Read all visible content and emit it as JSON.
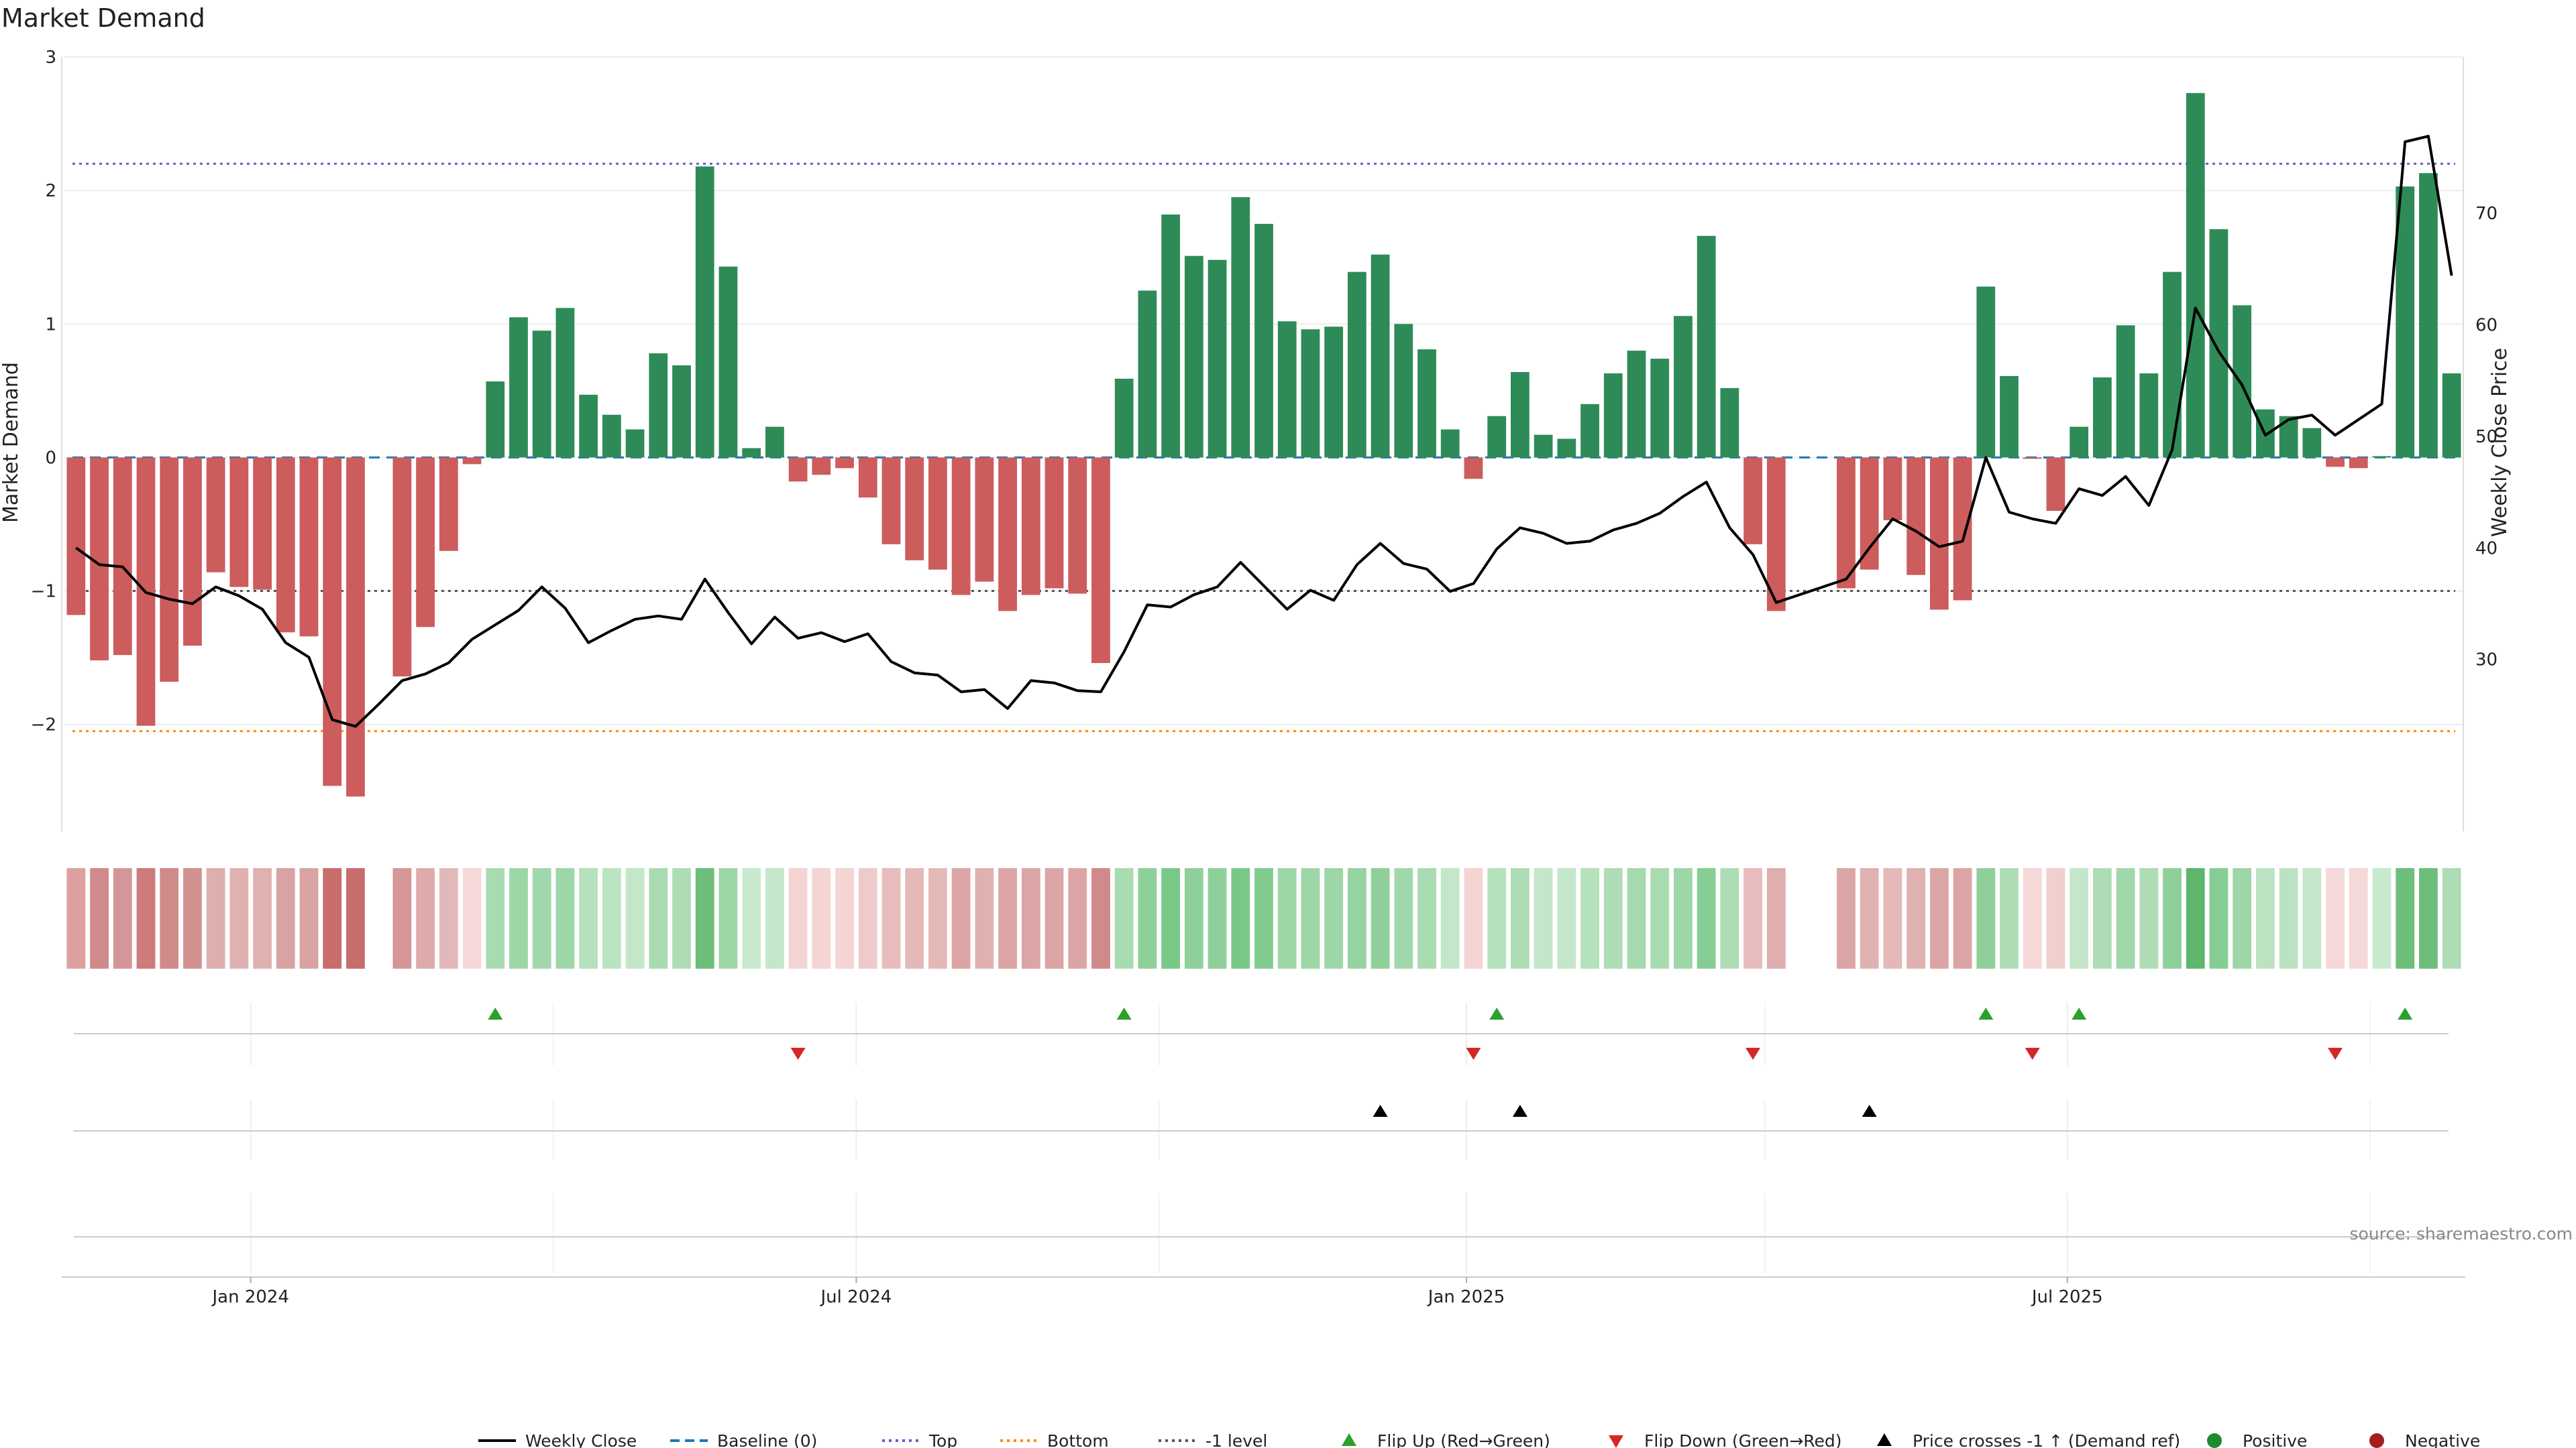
{
  "chart_data": {
    "type": "bar",
    "title": "Market Demand",
    "ylabel": "Market Demand",
    "y2label": "Weekly Close Price",
    "ylim": [
      -2.8,
      3.0
    ],
    "y2lim": [
      14.6,
      84.0
    ],
    "yticks": [
      3,
      2,
      1,
      0,
      -1,
      -2
    ],
    "ytick_labels": [
      "3",
      "2",
      "1",
      "0",
      "−1",
      "−2"
    ],
    "y2ticks": [
      70,
      60,
      50,
      40,
      30
    ],
    "y2tick_labels": [
      "70",
      "60",
      "50",
      "40",
      "30"
    ],
    "xticks": [
      {
        "label": "Jan 2024",
        "week": 7.5
      },
      {
        "label": "Jul 2024",
        "week": 33.5
      },
      {
        "label": "Jan 2025",
        "week": 59.7
      },
      {
        "label": "Jul 2025",
        "week": 85.5
      }
    ],
    "reference_lines": {
      "top": 2.2,
      "bottom": -2.05,
      "minus_one": -1.0,
      "baseline": 0
    },
    "demand": [
      -1.18,
      -1.52,
      -1.48,
      -2.01,
      -1.68,
      -1.41,
      -0.86,
      -0.97,
      -0.99,
      -1.31,
      -1.34,
      -2.46,
      -2.54,
      null,
      -1.64,
      -1.27,
      -0.7,
      -0.05,
      0.57,
      1.05,
      0.95,
      1.12,
      0.47,
      0.32,
      0.21,
      0.78,
      0.69,
      2.18,
      1.43,
      0.07,
      0.23,
      -0.18,
      -0.13,
      -0.08,
      -0.3,
      -0.65,
      -0.77,
      -0.84,
      -1.03,
      -0.93,
      -1.15,
      -1.03,
      -0.98,
      -1.02,
      -1.54,
      0.59,
      1.25,
      1.82,
      1.51,
      1.48,
      1.95,
      1.75,
      1.02,
      0.96,
      0.98,
      1.39,
      1.52,
      1.0,
      0.81,
      0.21,
      -0.16,
      0.31,
      0.64,
      0.17,
      0.14,
      0.4,
      0.63,
      0.8,
      0.74,
      1.06,
      1.66,
      0.52,
      -0.65,
      -1.15,
      null,
      null,
      -0.98,
      -0.84,
      -0.47,
      -0.88,
      -1.14,
      -1.07,
      1.28,
      0.61,
      -0.01,
      -0.4,
      0.23,
      0.6,
      0.99,
      0.63,
      1.39,
      2.73,
      1.71,
      1.14,
      0.36,
      0.31,
      0.22,
      -0.07,
      -0.08,
      0.01,
      2.03,
      2.13,
      0.63
    ],
    "price": [
      40,
      38.5,
      38.3,
      36,
      35.4,
      35,
      36.5,
      35.7,
      34.5,
      31.5,
      30.2,
      24.6,
      24,
      26,
      28.1,
      28.7,
      29.7,
      31.8,
      33.1,
      34.4,
      36.5,
      34.6,
      31.5,
      32.6,
      33.6,
      33.9,
      33.6,
      37.2,
      34.2,
      31.4,
      33.8,
      31.9,
      32.4,
      31.6,
      32.3,
      29.8,
      28.8,
      28.6,
      27.1,
      27.3,
      25.6,
      28.1,
      27.9,
      27.2,
      27.1,
      30.7,
      34.9,
      34.7,
      35.8,
      36.5,
      38.7,
      36.6,
      34.5,
      36.2,
      35.3,
      38.5,
      40.4,
      38.6,
      38.1,
      36.1,
      36.8,
      39.9,
      41.8,
      41.3,
      40.4,
      40.6,
      41.6,
      42.2,
      43.1,
      44.6,
      45.9,
      41.8,
      39.4,
      35.1,
      null,
      null,
      37.2,
      40,
      42.6,
      41.5,
      40.1,
      40.6,
      48.1,
      43.2,
      42.6,
      42.2,
      45.3,
      44.7,
      46.4,
      43.8,
      48.8,
      61.5,
      57.6,
      54.6,
      50.1,
      51.5,
      51.9,
      50.1,
      51.5,
      52.9,
      76.4,
      76.9,
      64.4
    ],
    "strip_colors": [
      "#dca0a0",
      "#d08a8a",
      "#d49696",
      "#cd7b7b",
      "#d08a8a",
      "#d29191",
      "#dfaeae",
      "#e0b1b1",
      "#e0b1b1",
      "#d9a3a3",
      "#d9a3a3",
      "#c86c6c",
      "#c86c6c",
      null,
      "#d49696",
      "#ddabab",
      "#e2b9b9",
      "#f5d9d9",
      "#a9dbb1",
      "#9dd6a7",
      "#a1d8ab",
      "#9dd6a7",
      "#b5e1bd",
      "#bbe3c2",
      "#c3e7c8",
      "#a9dbb1",
      "#addcb5",
      "#6cbe7a",
      "#9dd6a7",
      "#c8e9cd",
      "#c3e7c8",
      "#f5d4d4",
      "#f5d4d4",
      "#f5d4d4",
      "#efcaca",
      "#e8bcbc",
      "#e5b8b8",
      "#e5b8b8",
      "#dca5a5",
      "#e0b1b1",
      "#dca5a5",
      "#dca5a5",
      "#dca5a5",
      "#dca5a5",
      "#d08a8a",
      "#a9dbb1",
      "#8fd09a",
      "#7ac888",
      "#8fd09a",
      "#8fd09a",
      "#7ac888",
      "#82cb8f",
      "#9dd6a7",
      "#9dd6a7",
      "#9dd6a7",
      "#95d3a0",
      "#8fd09a",
      "#a1d8ab",
      "#a9dbb1",
      "#c3e7c8",
      "#f5d4d4",
      "#b5e1bd",
      "#addcb5",
      "#c3e7c8",
      "#c3e7c8",
      "#b5e1bd",
      "#addcb5",
      "#a5d9af",
      "#a9dbb1",
      "#9dd6a7",
      "#86cd93",
      "#addcb5",
      "#e8bcbc",
      "#dfaeae",
      null,
      null,
      "#dca5a5",
      "#e0b1b1",
      "#e5b8b8",
      "#e0b1b1",
      "#dca5a5",
      "#dca5a5",
      "#8fd09a",
      "#addcb5",
      "#f5d9d9",
      "#f0cfcf",
      "#c3e7c8",
      "#addcb5",
      "#a1d8ab",
      "#addcb5",
      "#8fd09a",
      "#5fb66d",
      "#86cd93",
      "#9dd6a7",
      "#bbe3c2",
      "#bbe3c2",
      "#c3e7c8",
      "#f5d9d9",
      "#f5d9d9",
      "#c8e9cd",
      "#6cbe7a",
      "#6cbe7a",
      "#addcb5"
    ],
    "flip_up_weeks": [
      18,
      45,
      61,
      82,
      86,
      100
    ],
    "flip_down_weeks": [
      31,
      60,
      72,
      84,
      97
    ],
    "price_cross_weeks": [
      56,
      62,
      77
    ],
    "source_label": "source: sharemaestro.com",
    "legend": [
      {
        "label": "Weekly Close",
        "kind": "line",
        "color": "#000000"
      },
      {
        "label": "Baseline (0)",
        "kind": "dash",
        "color": "#1f77b4"
      },
      {
        "label": "Top",
        "kind": "dot",
        "color": "#6a5acd"
      },
      {
        "label": "Bottom",
        "kind": "dot",
        "color": "#ff8c00"
      },
      {
        "label": "-1 level",
        "kind": "dot",
        "color": "#555555"
      },
      {
        "label": "Flip Up (Red→Green)",
        "kind": "tri-up",
        "color": "#2ca02c"
      },
      {
        "label": "Flip Down (Green→Red)",
        "kind": "tri-down",
        "color": "#d62728"
      },
      {
        "label": "Price crosses -1 ↑ (Demand ref)",
        "kind": "tri-up",
        "color": "#000000"
      },
      {
        "label": "Positive",
        "kind": "dot-marker",
        "color": "#1f8b2f"
      },
      {
        "label": "Negative",
        "kind": "dot-marker",
        "color": "#a51d1d"
      }
    ],
    "colors": {
      "positive_bar": "#2e8b57",
      "negative_bar": "#cd5c5c",
      "price_line": "#000000",
      "flip_up": "#2ca02c",
      "flip_down": "#d62728",
      "cross": "#000000"
    }
  }
}
